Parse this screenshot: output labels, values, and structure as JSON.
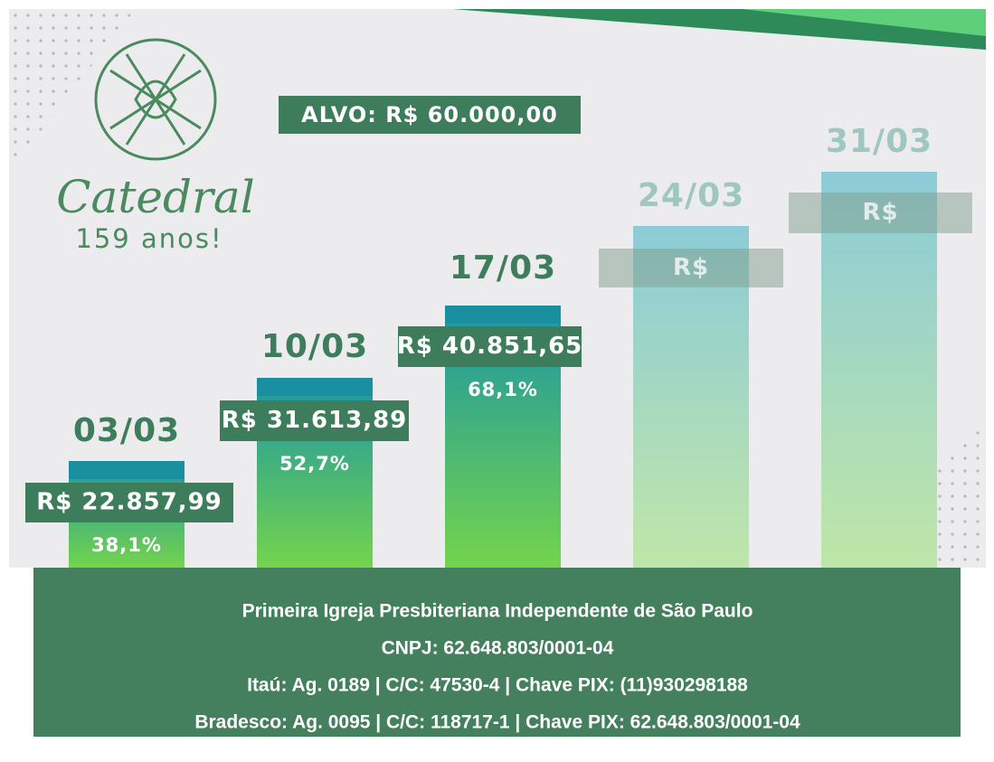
{
  "logo": {
    "title": "Catedral",
    "subtitle": "159 anos!"
  },
  "target": "ALVO: R$ 60.000,00",
  "weeks": [
    {
      "date": "03/03",
      "amount": "R$ 22.857,99",
      "percent": "38,1%"
    },
    {
      "date": "10/03",
      "amount": "R$ 31.613,89",
      "percent": "52,7%"
    },
    {
      "date": "17/03",
      "amount": "R$ 40.851,65",
      "percent": "68,1%"
    },
    {
      "date": "24/03",
      "amount": "R$"
    },
    {
      "date": "31/03",
      "amount": "R$"
    }
  ],
  "footer": [
    "Primeira Igreja Presbiteriana Independente de São Paulo",
    "CNPJ: 62.648.803/0001-04",
    "Itaú: Ag. 0189 | C/C: 47530-4 | Chave PIX: (11)930298188",
    "Bradesco: Ag. 0095 | C/C: 118717-1 | Chave PIX: 62.648.803/0001-04"
  ]
}
